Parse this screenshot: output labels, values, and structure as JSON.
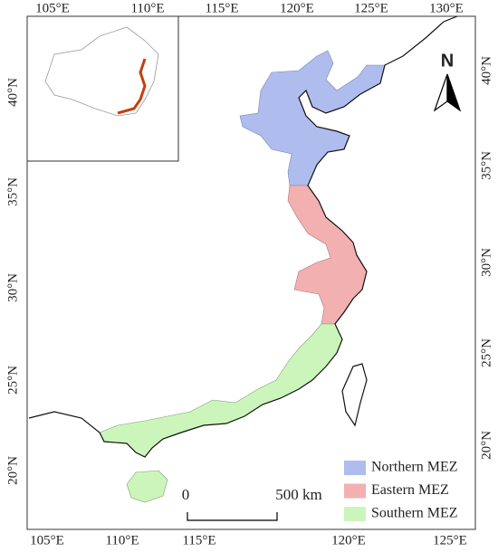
{
  "map": {
    "top_ticks": [
      "105°E",
      "110°E",
      "115°E",
      "120°E",
      "125°E",
      "130°E"
    ],
    "bottom_ticks": [
      "105°E",
      "110°E",
      "115°E",
      "120°E",
      "125°E"
    ],
    "left_ticks": [
      "40°N",
      "35°N",
      "30°N",
      "25°N",
      "20°N"
    ],
    "right_ticks": [
      "40°N",
      "35°N",
      "30°N",
      "25°N",
      "20°N"
    ],
    "north": "N",
    "scale_bar": {
      "start": "0",
      "end": "500 km"
    },
    "legend": [
      {
        "label": "Northern MEZ",
        "color": "#aebcee"
      },
      {
        "label": "Eastern MEZ",
        "color": "#f2b0b0"
      },
      {
        "label": "Southern MEZ",
        "color": "#ccf5bb"
      }
    ]
  }
}
